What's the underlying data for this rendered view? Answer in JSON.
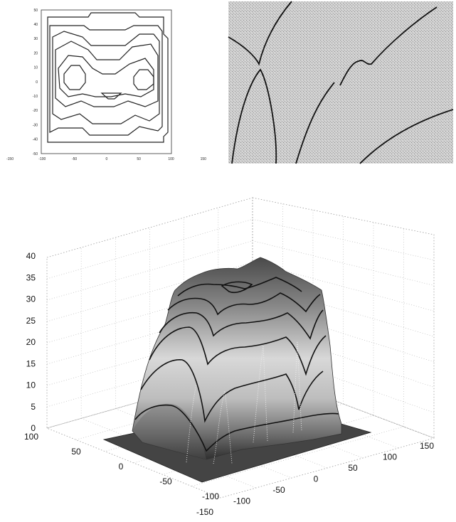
{
  "chart_data": [
    {
      "type": "contour",
      "x_ticks": [
        "-150",
        "-100",
        "-50",
        "0",
        "50",
        "100",
        "150"
      ],
      "y_ticks": [
        "50",
        "40",
        "30",
        "20",
        "10",
        "0",
        "-10",
        "-20",
        "-30",
        "-40",
        "-50"
      ],
      "xlim": [
        -150,
        150
      ],
      "ylim": [
        -50,
        50
      ],
      "grid": false
    },
    {
      "type": "contour-texture",
      "grid": false
    },
    {
      "type": "surface",
      "z_ticks": [
        "0",
        "5",
        "10",
        "15",
        "20",
        "25",
        "30",
        "35",
        "40"
      ],
      "y_ticks": [
        "100",
        "50",
        "0",
        "-50",
        "-100"
      ],
      "x_ticks": [
        "-150",
        "-100",
        "-50",
        "0",
        "50",
        "100",
        "150"
      ],
      "zlim": [
        0,
        40
      ],
      "ylim": [
        -100,
        100
      ],
      "xlim": [
        -150,
        150
      ],
      "grid": true
    }
  ]
}
